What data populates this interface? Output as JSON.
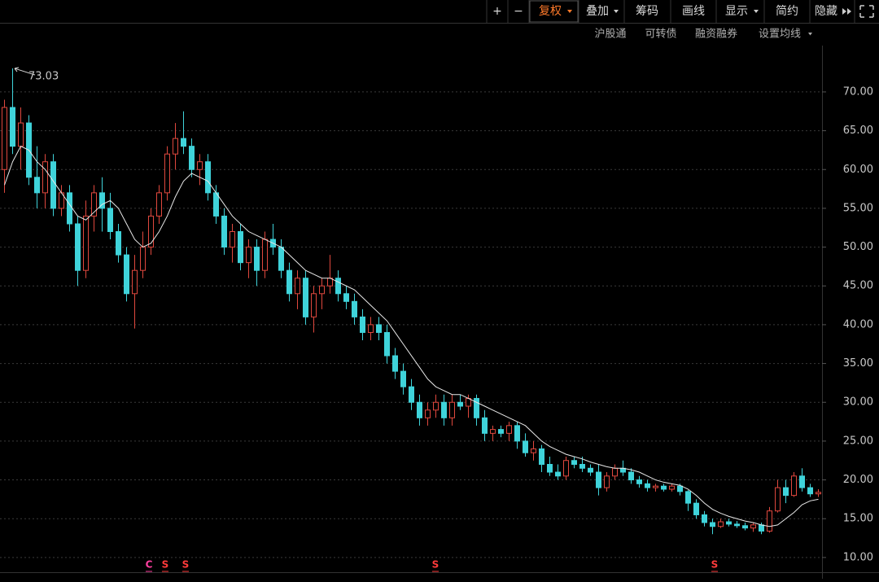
{
  "toolbar": [
    "+",
    "−",
    "复权",
    "叠加",
    "筹码",
    "画线",
    "显示",
    "简约",
    "隐藏"
  ],
  "subtoolbar": [
    "沪股通",
    "可转债",
    "融资融券",
    "设置均线"
  ],
  "chart_data": {
    "type": "candlestick",
    "up_color": "#e0483e",
    "down_color": "#3fd3da",
    "ma_color": "#e8e8e8",
    "ylim": [
      8.1,
      78.7
    ],
    "yticks": [
      {
        "value": 10,
        "label": "10.00"
      },
      {
        "value": 15,
        "label": "15.00"
      },
      {
        "value": 20,
        "label": "20.00"
      },
      {
        "value": 25,
        "label": "25.00"
      },
      {
        "value": 30,
        "label": "30.00"
      },
      {
        "value": 35,
        "label": "35.00"
      },
      {
        "value": 40,
        "label": "40.00"
      },
      {
        "value": 45,
        "label": "45.00"
      },
      {
        "value": 50,
        "label": "50.00"
      },
      {
        "value": 55,
        "label": "55.00"
      },
      {
        "value": 60,
        "label": "60.00"
      },
      {
        "value": 65,
        "label": "65.00"
      },
      {
        "value": 70,
        "label": "70.00"
      }
    ],
    "grid": true,
    "open": [
      60,
      68,
      63,
      66,
      59,
      57,
      61,
      55,
      57,
      53,
      47,
      54,
      57,
      55,
      52,
      49,
      44,
      47,
      50,
      54,
      57,
      62,
      64,
      63,
      60,
      61,
      57,
      54,
      50,
      52,
      48,
      50,
      47,
      51,
      50,
      47,
      44,
      46,
      41,
      44,
      45,
      46,
      44,
      43,
      41,
      39,
      40,
      39,
      36,
      34,
      32,
      30,
      28,
      29,
      30,
      28,
      30,
      29.5,
      30.5,
      28,
      26,
      26.5,
      26,
      27,
      25,
      23.5,
      24,
      22,
      21,
      20.5,
      22.5,
      22,
      21.5,
      21,
      19,
      20.5,
      21.5,
      21,
      20,
      19.5,
      19,
      19.2,
      18.8,
      19.2,
      18.5,
      17,
      15.5,
      14.5,
      14,
      14.6,
      14.3,
      14.1,
      13.8,
      14.2,
      13.4,
      16,
      19,
      18,
      20.5,
      19,
      18.2
    ],
    "high": [
      69,
      73.03,
      68,
      67,
      63,
      62,
      62,
      58,
      58,
      54,
      56,
      58,
      59,
      57,
      53,
      50,
      49,
      52,
      55,
      58,
      63,
      66,
      67.5,
      64,
      62,
      62,
      58,
      55,
      53,
      53,
      51,
      51,
      52,
      53,
      51,
      48,
      47,
      47,
      45,
      46,
      49,
      47,
      45,
      44,
      42,
      41,
      41,
      40,
      37,
      35,
      33,
      31,
      30,
      31,
      31,
      31,
      31,
      31,
      31,
      29,
      27,
      27,
      27.5,
      27.5,
      26,
      25,
      24.5,
      23,
      22,
      23,
      23,
      23,
      22,
      22,
      21,
      22,
      22.5,
      21.5,
      20.5,
      20,
      19.5,
      19.5,
      19.5,
      19.5,
      18.7,
      17.5,
      16,
      15,
      15,
      15,
      14.7,
      14.5,
      14.5,
      14.5,
      16.5,
      20,
      20,
      21,
      21.5,
      19.5,
      18.8
    ],
    "low": [
      57,
      62,
      60,
      58,
      55,
      55,
      54,
      54,
      52,
      45,
      46,
      52,
      52,
      51,
      48,
      43,
      39.5,
      46,
      49,
      53,
      56,
      60,
      62,
      59,
      58,
      56,
      53,
      49,
      48,
      47,
      46,
      45,
      46,
      49,
      46,
      43,
      42,
      40,
      39,
      42,
      44,
      43,
      42,
      40,
      38,
      38,
      38,
      35,
      33,
      31,
      29,
      27,
      27,
      28,
      27,
      27,
      29,
      28,
      27,
      25,
      25,
      25.5,
      25,
      24,
      23,
      22.5,
      21,
      20.5,
      20,
      20,
      21.5,
      21,
      20.5,
      18,
      18.5,
      20,
      20.5,
      19.5,
      19,
      18.5,
      18.5,
      18.5,
      18.5,
      18,
      16,
      15,
      14,
      13,
      13.8,
      14,
      13.8,
      13.5,
      13.3,
      13,
      13.2,
      15.8,
      17,
      17.8,
      18.5,
      17.8,
      17.8
    ],
    "close": [
      68,
      63,
      66,
      59,
      57,
      61,
      55,
      57,
      53,
      47,
      54,
      57,
      55,
      52,
      49,
      44,
      47,
      50,
      54,
      57,
      62,
      64,
      63,
      60,
      61,
      57,
      54,
      50,
      52,
      48,
      50,
      47,
      51,
      50,
      47,
      44,
      46,
      41,
      44,
      45,
      46,
      44,
      43,
      41,
      39,
      40,
      39,
      36,
      34,
      32,
      30,
      28,
      29,
      30,
      28,
      30,
      29.5,
      30.5,
      28,
      26,
      26.5,
      26,
      27,
      25,
      23.5,
      24,
      22,
      21,
      20.5,
      22.5,
      22,
      21.5,
      21,
      19,
      20.5,
      21.5,
      21,
      20,
      19.5,
      19,
      19.2,
      18.8,
      19.2,
      18.5,
      17,
      15.5,
      14.5,
      14,
      14.6,
      14.3,
      14.1,
      13.8,
      14.2,
      13.4,
      16,
      19,
      18,
      20.5,
      19,
      18.2,
      18.4
    ],
    "ma": [
      58,
      61,
      63,
      62.5,
      61,
      60,
      58.5,
      57,
      55.5,
      54,
      53.5,
      54.5,
      55.5,
      56,
      55,
      53,
      51,
      50,
      50.5,
      52,
      54,
      56.5,
      58.5,
      59.5,
      59,
      58.5,
      57,
      55.5,
      54,
      53,
      52,
      51.5,
      51,
      50.5,
      50,
      49,
      48,
      47,
      46.5,
      46,
      46,
      45.5,
      45,
      44.5,
      43.5,
      42.5,
      41.5,
      40.5,
      39,
      37.5,
      36,
      34.5,
      33,
      32,
      31.5,
      31,
      31,
      30.5,
      30,
      29.5,
      29,
      28.5,
      28,
      27.5,
      27,
      26,
      25,
      24.3,
      23.8,
      23.3,
      23,
      22.7,
      22.3,
      22,
      21.7,
      21.5,
      21.5,
      21.3,
      21,
      20.5,
      20,
      19.7,
      19.5,
      19.3,
      18.8,
      18,
      17,
      16.2,
      15.7,
      15.3,
      15,
      14.7,
      14.5,
      14.2,
      14,
      14.2,
      15,
      15.8,
      16.8,
      17.3,
      17.5
    ],
    "markers": [
      "C",
      "S",
      "S",
      "S",
      "S"
    ]
  }
}
